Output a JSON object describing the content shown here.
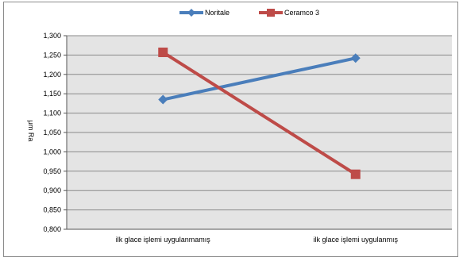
{
  "chart_data": {
    "type": "line",
    "categories": [
      "ilk glace işlemi uygulanmamış",
      "ilk glace işlemi uygulanmış"
    ],
    "series": [
      {
        "name": "Noritale",
        "values": [
          1.135,
          1.242
        ],
        "color": "#4a7ebb",
        "marker": "diamond"
      },
      {
        "name": "Ceramco 3",
        "values": [
          1.257,
          0.942
        ],
        "color": "#be4b48",
        "marker": "square"
      }
    ],
    "ylabel": "μm Ra",
    "ylim": [
      0.8,
      1.3
    ],
    "yticks": [
      "0,800",
      "0,850",
      "0,900",
      "0,950",
      "1,000",
      "1,050",
      "1,100",
      "1,150",
      "1,200",
      "1,250",
      "1,300"
    ],
    "ytick_step": 0.05,
    "grid": true,
    "legend_position": "top-center",
    "plot_background": "#e4e4e4",
    "gridline_color": "#8a8a8a"
  }
}
